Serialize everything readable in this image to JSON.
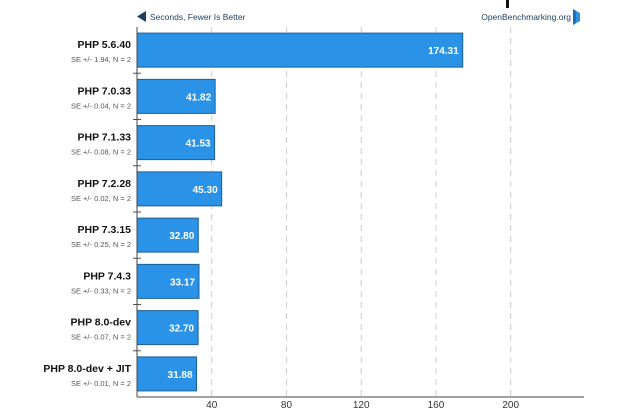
{
  "header": {
    "direction_label": "Seconds, Fewer Is Better",
    "brand": "OpenBenchmarking.org"
  },
  "chart_data": {
    "type": "bar",
    "orientation": "horizontal",
    "categories": [
      "PHP 5.6.40",
      "PHP 7.0.33",
      "PHP 7.1.33",
      "PHP 7.2.28",
      "PHP 7.3.15",
      "PHP 7.4.3",
      "PHP 8.0-dev",
      "PHP 8.0-dev + JIT"
    ],
    "values": [
      174.31,
      41.82,
      41.53,
      45.3,
      32.8,
      33.17,
      32.7,
      31.88
    ],
    "value_labels": [
      "174.31",
      "41.82",
      "41.53",
      "45.30",
      "32.80",
      "33.17",
      "32.70",
      "31.88"
    ],
    "errors": [
      "SE +/- 1.94, N = 2",
      "SE +/- 0.04, N = 2",
      "SE +/- 0.08, N = 2",
      "SE +/- 0.02, N = 2",
      "SE +/- 0.25, N = 2",
      "SE +/- 0.33, N = 2",
      "SE +/- 0.07, N = 2",
      "SE +/- 0.01, N = 2"
    ],
    "xticks": [
      40,
      80,
      120,
      160,
      200
    ],
    "xlim": [
      0,
      240
    ],
    "grid": true,
    "bar_color": "#2a93e8",
    "bar_edge_color": "#1d5f95"
  }
}
